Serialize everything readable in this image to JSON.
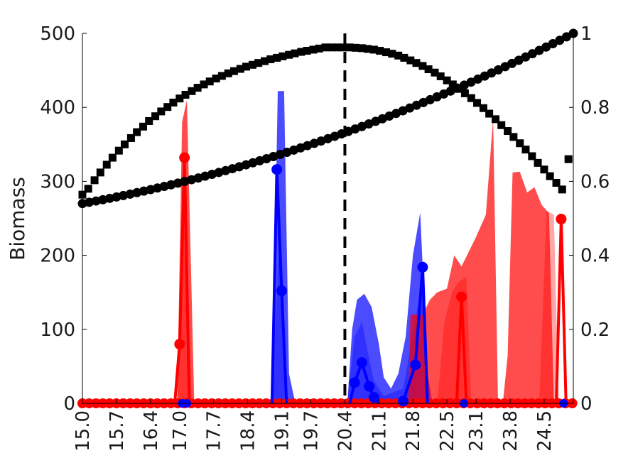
{
  "chart_data": {
    "type": "line",
    "title": "",
    "ylabel": "Biomass",
    "xlabel": "",
    "x_range": [
      15.0,
      25.1
    ],
    "y_left_range": [
      0,
      500
    ],
    "y_right_range": [
      0,
      1
    ],
    "x_ticks": [
      "15.0",
      "15.7",
      "16.4",
      "17.0",
      "17.7",
      "18.4",
      "19.1",
      "19.7",
      "20.4",
      "21.1",
      "21.8",
      "22.5",
      "23.1",
      "23.8",
      "24.5"
    ],
    "y_left_ticks": [
      "0",
      "100",
      "200",
      "300",
      "400",
      "500"
    ],
    "y_right_ticks": [
      "0",
      "0.2",
      "0.4",
      "0.6",
      "0.8",
      "1"
    ],
    "grid": false,
    "vertical_dashed_line_x": 20.4,
    "colors": {
      "red": "#ff0000",
      "blue": "#0000ff",
      "black": "#000000"
    },
    "x": [
      15.0,
      15.14,
      15.28,
      15.42,
      15.56,
      15.7,
      15.84,
      15.98,
      16.12,
      16.26,
      16.4,
      16.54,
      16.68,
      16.82,
      16.96,
      17.1,
      17.24,
      17.38,
      17.52,
      17.66,
      17.8,
      17.94,
      18.08,
      18.22,
      18.36,
      18.5,
      18.64,
      18.78,
      18.92,
      19.06,
      19.2,
      19.34,
      19.48,
      19.62,
      19.76,
      19.9,
      20.04,
      20.18,
      20.32,
      20.46,
      20.6,
      20.74,
      20.88,
      21.02,
      21.16,
      21.3,
      21.44,
      21.58,
      21.72,
      21.86,
      22.0,
      22.14,
      22.28,
      22.42,
      22.56,
      22.7,
      22.84,
      22.98,
      23.12,
      23.26,
      23.4,
      23.54,
      23.68,
      23.82,
      23.96,
      24.1,
      24.24,
      24.38,
      24.52,
      24.66,
      24.8,
      24.94,
      25.08
    ],
    "series": [
      {
        "axis": "left",
        "color": "#ff0000",
        "marker": "asterisk-dot",
        "values": [
          0,
          0,
          0,
          0,
          0,
          0,
          0,
          0,
          0,
          0,
          0,
          0,
          0,
          0,
          0,
          0,
          0,
          0,
          0,
          0,
          0,
          0,
          0,
          0,
          0,
          0,
          0,
          0,
          0,
          0,
          0,
          0,
          0,
          0,
          0,
          0,
          0,
          0,
          0,
          0,
          0,
          0,
          0,
          0,
          0,
          0,
          0,
          0,
          0,
          0,
          0,
          0,
          0,
          0,
          0,
          0,
          0,
          0,
          0,
          0,
          0,
          0,
          0,
          0,
          0,
          0,
          0,
          0,
          0,
          0,
          0,
          0,
          0
        ],
        "points": [
          [
            17.0,
            80
          ],
          [
            17.1,
            332
          ],
          [
            22.8,
            144
          ],
          [
            24.85,
            249
          ]
        ]
      },
      {
        "axis": "left",
        "color": "#0000ff",
        "marker": "asterisk-dot",
        "points": [
          [
            19.0,
            316
          ],
          [
            19.1,
            152
          ],
          [
            20.6,
            28
          ],
          [
            20.75,
            55
          ],
          [
            20.9,
            23
          ],
          [
            21.0,
            8
          ],
          [
            21.6,
            3
          ],
          [
            21.85,
            52
          ],
          [
            22.0,
            184
          ]
        ]
      }
    ],
    "curves_right": [
      {
        "name_shape": "square",
        "color": "#000000",
        "x": [
          15.0,
          15.12,
          15.25,
          15.37,
          15.5,
          15.62,
          15.75,
          15.87,
          16.0,
          16.12,
          16.25,
          16.37,
          16.5,
          16.62,
          16.75,
          16.87,
          17.0,
          17.12,
          17.25,
          17.37,
          17.5,
          17.62,
          17.75,
          17.87,
          18.0,
          18.12,
          18.25,
          18.37,
          18.5,
          18.62,
          18.75,
          18.87,
          19.0,
          19.12,
          19.25,
          19.37,
          19.5,
          19.62,
          19.75,
          19.87,
          20.0,
          20.12,
          20.25,
          20.37,
          20.5,
          20.62,
          20.75,
          20.87,
          21.0,
          21.12,
          21.25,
          21.37,
          21.5,
          21.62,
          21.75,
          21.87,
          22.0,
          22.12,
          22.25,
          22.37,
          22.5,
          22.62,
          22.75,
          22.87,
          23.0,
          23.12,
          23.25,
          23.37,
          23.5,
          23.62,
          23.75,
          23.87,
          24.0,
          24.12,
          24.25,
          24.37,
          24.5,
          24.62,
          24.75,
          24.87,
          25.0
        ],
        "values": [
          0.564,
          0.58,
          0.603,
          0.624,
          0.645,
          0.664,
          0.683,
          0.7,
          0.717,
          0.733,
          0.748,
          0.763,
          0.776,
          0.789,
          0.801,
          0.813,
          0.824,
          0.834,
          0.844,
          0.853,
          0.862,
          0.87,
          0.878,
          0.885,
          0.892,
          0.898,
          0.904,
          0.91,
          0.915,
          0.92,
          0.925,
          0.93,
          0.934,
          0.938,
          0.942,
          0.946,
          0.95,
          0.953,
          0.956,
          0.959,
          0.962,
          0.962,
          0.962,
          0.962,
          0.962,
          0.961,
          0.96,
          0.958,
          0.956,
          0.953,
          0.949,
          0.945,
          0.94,
          0.934,
          0.927,
          0.92,
          0.912,
          0.903,
          0.894,
          0.884,
          0.873,
          0.862,
          0.85,
          0.838,
          0.825,
          0.812,
          0.798,
          0.783,
          0.768,
          0.752,
          0.736,
          0.72,
          0.703,
          0.686,
          0.668,
          0.65,
          0.632,
          0.614,
          0.596,
          0.578,
          0.66
        ]
      },
      {
        "name_shape": "circle",
        "color": "#000000",
        "x_start": 15.0,
        "x_end": 25.1,
        "v_start": 0.54,
        "v_end": 1.0,
        "count": 73
      }
    ],
    "bands": [
      {
        "color": "#ff0000",
        "opacity": 0.7,
        "polygon": [
          [
            16.95,
            0
          ],
          [
            17.05,
            380
          ],
          [
            17.15,
            410
          ],
          [
            17.3,
            0
          ]
        ]
      },
      {
        "color": "#ff0000",
        "opacity": 0.35,
        "polygon": [
          [
            16.95,
            0
          ],
          [
            17.1,
            300
          ],
          [
            17.25,
            0
          ]
        ]
      },
      {
        "color": "#0000ff",
        "opacity": 0.7,
        "polygon": [
          [
            18.9,
            0
          ],
          [
            19.02,
            422
          ],
          [
            19.15,
            422
          ],
          [
            19.25,
            40
          ],
          [
            19.38,
            0
          ]
        ]
      },
      {
        "color": "#0000ff",
        "opacity": 0.35,
        "polygon": [
          [
            18.9,
            0
          ],
          [
            19.05,
            220
          ],
          [
            19.2,
            0
          ]
        ]
      },
      {
        "color": "#0000ff",
        "opacity": 0.7,
        "polygon": [
          [
            20.45,
            0
          ],
          [
            20.55,
            100
          ],
          [
            20.65,
            140
          ],
          [
            20.8,
            148
          ],
          [
            20.95,
            130
          ],
          [
            21.1,
            80
          ],
          [
            21.2,
            35
          ],
          [
            21.35,
            20
          ],
          [
            21.5,
            40
          ],
          [
            21.65,
            90
          ],
          [
            21.8,
            200
          ],
          [
            21.95,
            258
          ],
          [
            22.1,
            40
          ],
          [
            22.2,
            0
          ]
        ]
      },
      {
        "color": "#0000ff",
        "opacity": 0.35,
        "polygon": [
          [
            20.45,
            0
          ],
          [
            20.6,
            90
          ],
          [
            20.75,
            110
          ],
          [
            20.9,
            60
          ],
          [
            21.0,
            30
          ],
          [
            21.2,
            10
          ],
          [
            21.6,
            20
          ],
          [
            21.85,
            110
          ],
          [
            22.0,
            180
          ],
          [
            22.1,
            0
          ]
        ]
      },
      {
        "color": "#ff0000",
        "opacity": 0.7,
        "polygon": [
          [
            21.7,
            0
          ],
          [
            21.75,
            120
          ],
          [
            22.0,
            120
          ],
          [
            22.15,
            140
          ],
          [
            22.3,
            150
          ],
          [
            22.5,
            155
          ],
          [
            22.65,
            200
          ],
          [
            22.8,
            185
          ],
          [
            22.95,
            205
          ],
          [
            23.1,
            225
          ],
          [
            23.3,
            255
          ],
          [
            23.45,
            385
          ],
          [
            23.55,
            0
          ],
          [
            23.65,
            0
          ],
          [
            23.75,
            65
          ],
          [
            23.85,
            312
          ],
          [
            24.0,
            313
          ],
          [
            24.15,
            285
          ],
          [
            24.3,
            292
          ],
          [
            24.45,
            268
          ],
          [
            24.6,
            257
          ],
          [
            24.7,
            0
          ]
        ]
      },
      {
        "color": "#ff0000",
        "opacity": 0.35,
        "polygon": [
          [
            22.3,
            0
          ],
          [
            22.45,
            110
          ],
          [
            22.6,
            150
          ],
          [
            22.75,
            165
          ],
          [
            22.9,
            170
          ],
          [
            23.0,
            0
          ],
          [
            24.4,
            0
          ],
          [
            24.55,
            260
          ],
          [
            24.7,
            255
          ],
          [
            24.8,
            0
          ]
        ]
      }
    ]
  }
}
